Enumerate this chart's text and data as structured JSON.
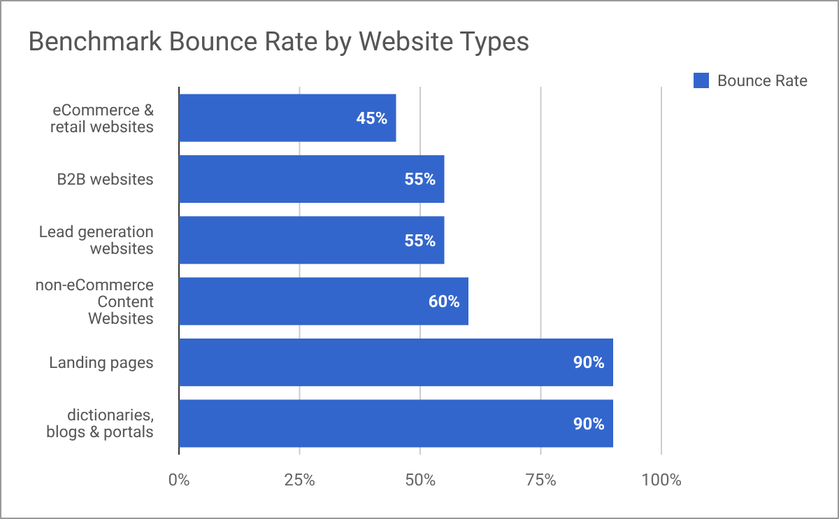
{
  "chart_data": {
    "type": "bar",
    "orientation": "horizontal",
    "title": "Benchmark Bounce Rate by Website Types",
    "categories": [
      "eCommerce & retail websites",
      "B2B websites",
      "Lead generation websites",
      "non-eCommerce Content Websites",
      "Landing pages",
      "dictionaries, blogs & portals"
    ],
    "series": [
      {
        "name": "Bounce Rate",
        "color": "#3366cc",
        "values": [
          45,
          55,
          55,
          60,
          90,
          90
        ],
        "value_labels": [
          "45%",
          "55%",
          "55%",
          "60%",
          "90%",
          "90%"
        ]
      }
    ],
    "xlim": [
      0,
      100
    ],
    "xticks": [
      {
        "value": 0,
        "label": "0%"
      },
      {
        "value": 25,
        "label": "25%"
      },
      {
        "value": 50,
        "label": "50%"
      },
      {
        "value": 75,
        "label": "75%"
      },
      {
        "value": 100,
        "label": "100%"
      }
    ],
    "grid": "x",
    "legend": "top right"
  }
}
